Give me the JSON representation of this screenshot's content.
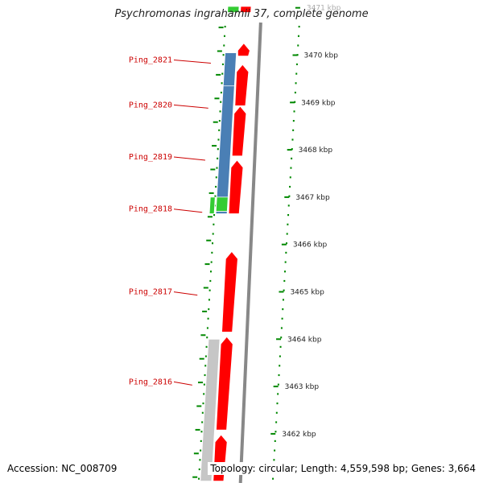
{
  "title": "Psychromonas ingrahamii 37, complete genome",
  "accession": "Accession: NC_008709",
  "topology": "Topology: circular; Length: 4,559,598 bp; Genes: 3,664",
  "colors": {
    "forward_cds": "#ff0000",
    "reverse_blue": "#4a7fb5",
    "reverse_green": "#33cc33",
    "gray_feature": "#c0c0c0",
    "backbone": "#888888",
    "gene_label": "#cc0000",
    "tick": "#008800"
  },
  "ruler": [
    {
      "kbp": 3471,
      "label": "3471 kbp"
    },
    {
      "kbp": 3470,
      "label": "3470 kbp"
    },
    {
      "kbp": 3469,
      "label": "3469 kbp"
    },
    {
      "kbp": 3468,
      "label": "3468 kbp"
    },
    {
      "kbp": 3467,
      "label": "3467 kbp"
    },
    {
      "kbp": 3466,
      "label": "3466 kbp"
    },
    {
      "kbp": 3465,
      "label": "3465 kbp"
    },
    {
      "kbp": 3464,
      "label": "3464 kbp"
    },
    {
      "kbp": 3463,
      "label": "3463 kbp"
    },
    {
      "kbp": 3462,
      "label": "3462 kbp"
    }
  ],
  "gene_labels": [
    {
      "name": "Ping_2821",
      "kbp": 3470.0
    },
    {
      "name": "Ping_2820",
      "kbp": 3469.05
    },
    {
      "name": "Ping_2819",
      "kbp": 3467.95
    },
    {
      "name": "Ping_2818",
      "kbp": 3466.85
    },
    {
      "name": "Ping_2817",
      "kbp": 3465.1
    },
    {
      "name": "Ping_2816",
      "kbp": 3463.2
    }
  ],
  "features": [
    {
      "track": "forward",
      "color": "forward_cds",
      "start": 3469.98,
      "end": 3470.25,
      "arrow": true
    },
    {
      "track": "forward",
      "color": "forward_cds",
      "start": 3468.93,
      "end": 3469.8,
      "arrow": true
    },
    {
      "track": "forward",
      "color": "forward_cds",
      "start": 3467.87,
      "end": 3468.92,
      "arrow": true
    },
    {
      "track": "forward",
      "color": "forward_cds",
      "start": 3466.65,
      "end": 3467.78,
      "arrow": true
    },
    {
      "track": "forward",
      "color": "forward_cds",
      "start": 3464.15,
      "end": 3465.85,
      "arrow": true
    },
    {
      "track": "forward",
      "color": "forward_cds",
      "start": 3462.08,
      "end": 3464.05,
      "arrow": true
    },
    {
      "track": "forward",
      "color": "forward_cds",
      "start": 3461.0,
      "end": 3461.98,
      "arrow": true
    },
    {
      "track": "forward",
      "color": "forward_cds",
      "start": 3470.9,
      "end": 3471.4,
      "arrow": false
    },
    {
      "track": "reverse",
      "color": "reverse_blue",
      "start": 3469.3,
      "end": 3470.05,
      "arrow": false
    },
    {
      "track": "reverse",
      "color": "reverse_blue",
      "start": 3467.0,
      "end": 3469.35,
      "arrow": false
    },
    {
      "track": "reverse",
      "color": "reverse_blue",
      "start": 3466.65,
      "end": 3467.0,
      "arrow": false
    },
    {
      "track": "reverse",
      "color": "reverse_green",
      "start": 3466.7,
      "end": 3467.0,
      "arrow": false
    },
    {
      "track": "reverse2",
      "color": "reverse_green",
      "start": 3466.65,
      "end": 3467.0,
      "arrow": false
    },
    {
      "track": "reverse",
      "color": "gray_feature",
      "start": 3461.0,
      "end": 3464.0,
      "arrow": false
    },
    {
      "track": "reverse",
      "color": "reverse_green",
      "start": 3470.9,
      "end": 3471.4,
      "arrow": false
    }
  ]
}
